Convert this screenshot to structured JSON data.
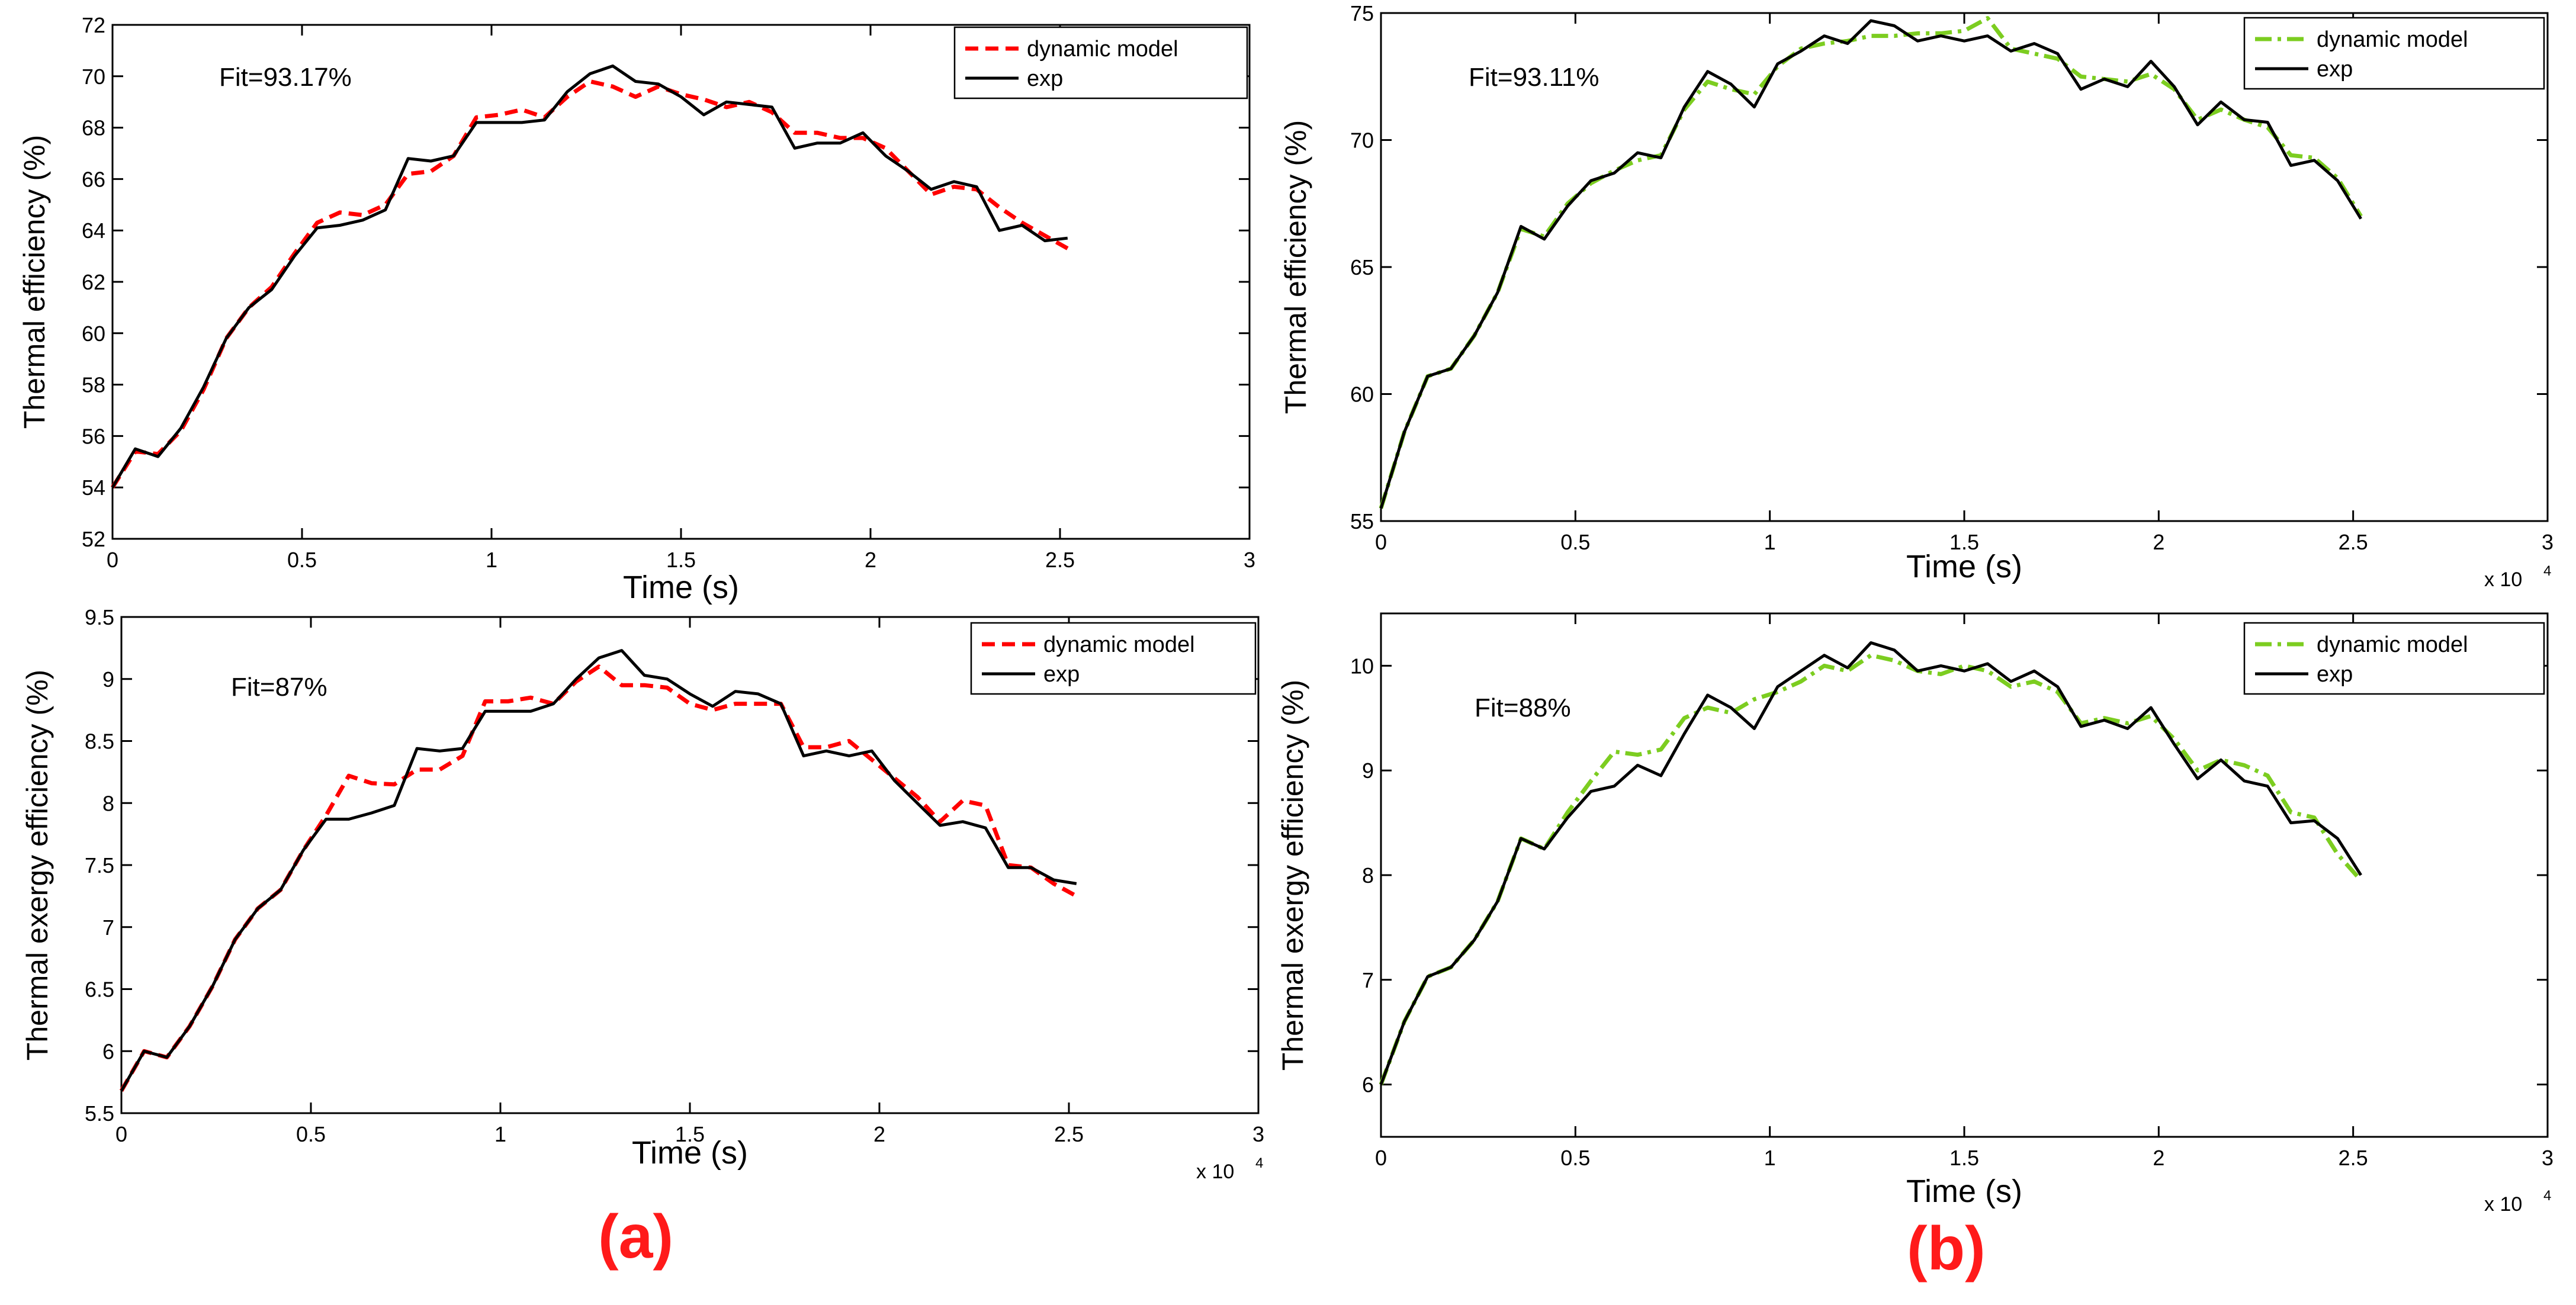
{
  "panel_labels": [
    "(a)",
    "(b)"
  ],
  "chart_data": [
    {
      "id": "a_top",
      "type": "line",
      "title": "",
      "xlabel": "Time (s)",
      "ylabel": "Thermal efficiency (%)",
      "x_multiplier_label": "x 10",
      "x_multiplier_exp": "4",
      "xlim": [
        0,
        3
      ],
      "ylim": [
        52,
        72
      ],
      "xticks": [
        "0",
        "0.5",
        "1",
        "1.5",
        "2",
        "2.5",
        "3"
      ],
      "yticks": [
        "52",
        "54",
        "56",
        "58",
        "60",
        "62",
        "64",
        "66",
        "68",
        "70",
        "72"
      ],
      "annotation": "Fit=93.17%",
      "legend_position": "top-right",
      "series": [
        {
          "name": "dynamic model",
          "color": "#ff0000",
          "dash": "dash",
          "x": [
            0,
            0.06,
            0.12,
            0.18,
            0.24,
            0.3,
            0.36,
            0.42,
            0.48,
            0.54,
            0.6,
            0.66,
            0.72,
            0.78,
            0.84,
            0.9,
            0.96,
            1.02,
            1.08,
            1.14,
            1.2,
            1.26,
            1.32,
            1.38,
            1.44,
            1.5,
            1.56,
            1.62,
            1.68,
            1.74,
            1.8,
            1.86,
            1.92,
            1.98,
            2.04,
            2.1,
            2.16,
            2.22,
            2.28,
            2.34,
            2.4,
            2.46,
            2.52
          ],
          "y": [
            54.0,
            55.4,
            55.3,
            56.2,
            57.8,
            59.8,
            61.0,
            61.8,
            63.1,
            64.3,
            64.7,
            64.6,
            65.0,
            66.2,
            66.3,
            66.9,
            68.4,
            68.5,
            68.7,
            68.4,
            69.2,
            69.8,
            69.6,
            69.2,
            69.6,
            69.3,
            69.1,
            68.8,
            69.0,
            68.6,
            67.8,
            67.8,
            67.6,
            67.6,
            67.2,
            66.3,
            65.4,
            65.7,
            65.6,
            64.9,
            64.3,
            63.8,
            63.3
          ]
        },
        {
          "name": "exp",
          "color": "#000000",
          "dash": "solid",
          "x": [
            0,
            0.06,
            0.12,
            0.18,
            0.24,
            0.3,
            0.36,
            0.42,
            0.48,
            0.54,
            0.6,
            0.66,
            0.72,
            0.78,
            0.84,
            0.9,
            0.96,
            1.02,
            1.08,
            1.14,
            1.2,
            1.26,
            1.32,
            1.38,
            1.44,
            1.5,
            1.56,
            1.62,
            1.68,
            1.74,
            1.8,
            1.86,
            1.92,
            1.98,
            2.04,
            2.1,
            2.16,
            2.22,
            2.28,
            2.34,
            2.4,
            2.46,
            2.52
          ],
          "y": [
            54.0,
            55.5,
            55.2,
            56.3,
            57.9,
            59.8,
            61.0,
            61.7,
            63.0,
            64.1,
            64.2,
            64.4,
            64.8,
            66.8,
            66.7,
            66.9,
            68.2,
            68.2,
            68.2,
            68.3,
            69.4,
            70.1,
            70.4,
            69.8,
            69.7,
            69.2,
            68.5,
            69.0,
            68.9,
            68.8,
            67.2,
            67.4,
            67.4,
            67.8,
            66.9,
            66.3,
            65.6,
            65.9,
            65.7,
            64.0,
            64.2,
            63.6,
            63.7
          ]
        }
      ]
    },
    {
      "id": "a_bottom",
      "type": "line",
      "title": "",
      "xlabel": "Time (s)",
      "ylabel": "Thermal exergy efficiency (%)",
      "x_multiplier_label": "x 10",
      "x_multiplier_exp": "4",
      "xlim": [
        0,
        3
      ],
      "ylim": [
        5.5,
        9.5
      ],
      "xticks": [
        "0",
        "0.5",
        "1",
        "1.5",
        "2",
        "2.5",
        "3"
      ],
      "yticks": [
        "5.5",
        "6",
        "6.5",
        "7",
        "7.5",
        "8",
        "8.5",
        "9",
        "9.5"
      ],
      "annotation": "Fit=87%",
      "legend_position": "top-right",
      "series": [
        {
          "name": "dynamic model",
          "color": "#ff0000",
          "dash": "dash",
          "x": [
            0,
            0.06,
            0.12,
            0.18,
            0.24,
            0.3,
            0.36,
            0.42,
            0.48,
            0.54,
            0.6,
            0.66,
            0.72,
            0.78,
            0.84,
            0.9,
            0.96,
            1.02,
            1.08,
            1.14,
            1.2,
            1.26,
            1.32,
            1.38,
            1.44,
            1.5,
            1.56,
            1.62,
            1.68,
            1.74,
            1.8,
            1.86,
            1.92,
            1.98,
            2.04,
            2.1,
            2.16,
            2.22,
            2.28,
            2.34,
            2.4,
            2.46,
            2.52
          ],
          "y": [
            5.68,
            6.0,
            5.95,
            6.2,
            6.52,
            6.9,
            7.15,
            7.3,
            7.62,
            7.9,
            8.22,
            8.16,
            8.15,
            8.27,
            8.27,
            8.38,
            8.82,
            8.82,
            8.85,
            8.8,
            8.98,
            9.1,
            8.95,
            8.95,
            8.93,
            8.8,
            8.75,
            8.8,
            8.8,
            8.8,
            8.45,
            8.45,
            8.5,
            8.35,
            8.2,
            8.05,
            7.85,
            8.02,
            7.98,
            7.5,
            7.48,
            7.35,
            7.25
          ]
        },
        {
          "name": "exp",
          "color": "#000000",
          "dash": "solid",
          "x": [
            0,
            0.06,
            0.12,
            0.18,
            0.24,
            0.3,
            0.36,
            0.42,
            0.48,
            0.54,
            0.6,
            0.66,
            0.72,
            0.78,
            0.84,
            0.9,
            0.96,
            1.02,
            1.08,
            1.14,
            1.2,
            1.26,
            1.32,
            1.38,
            1.44,
            1.5,
            1.56,
            1.62,
            1.68,
            1.74,
            1.8,
            1.86,
            1.92,
            1.98,
            2.04,
            2.1,
            2.16,
            2.22,
            2.28,
            2.34,
            2.4,
            2.46,
            2.52
          ],
          "y": [
            5.68,
            6.0,
            5.95,
            6.2,
            6.52,
            6.9,
            7.15,
            7.3,
            7.62,
            7.87,
            7.87,
            7.92,
            7.98,
            8.44,
            8.42,
            8.44,
            8.74,
            8.74,
            8.74,
            8.8,
            9.0,
            9.17,
            9.23,
            9.03,
            9.0,
            8.88,
            8.78,
            8.9,
            8.88,
            8.8,
            8.38,
            8.42,
            8.38,
            8.42,
            8.18,
            8.0,
            7.82,
            7.85,
            7.8,
            7.48,
            7.48,
            7.38,
            7.35
          ]
        }
      ]
    },
    {
      "id": "b_top",
      "type": "line",
      "title": "",
      "xlabel": "Time (s)",
      "ylabel": "Thermal efficiency (%)",
      "x_multiplier_label": "x 10",
      "x_multiplier_exp": "4",
      "xlim": [
        0,
        3
      ],
      "ylim": [
        55,
        75
      ],
      "xticks": [
        "0",
        "0.5",
        "1",
        "1.5",
        "2",
        "2.5",
        "3"
      ],
      "yticks": [
        "55",
        "60",
        "65",
        "70",
        "75"
      ],
      "annotation": "Fit=93.11%",
      "legend_position": "top-right",
      "series": [
        {
          "name": "dynamic model",
          "color": "#7ccd20",
          "dash": "dashdot",
          "x": [
            0,
            0.06,
            0.12,
            0.18,
            0.24,
            0.3,
            0.36,
            0.42,
            0.48,
            0.54,
            0.6,
            0.66,
            0.72,
            0.78,
            0.84,
            0.9,
            0.96,
            1.02,
            1.08,
            1.14,
            1.2,
            1.26,
            1.32,
            1.38,
            1.44,
            1.5,
            1.56,
            1.62,
            1.68,
            1.74,
            1.8,
            1.86,
            1.92,
            1.98,
            2.04,
            2.1,
            2.16,
            2.22,
            2.28,
            2.34,
            2.4,
            2.46,
            2.52
          ],
          "y": [
            55.5,
            58.5,
            60.7,
            61.0,
            62.3,
            64.0,
            66.5,
            66.2,
            67.5,
            68.3,
            68.8,
            69.2,
            69.4,
            71.2,
            72.3,
            72.0,
            71.8,
            72.9,
            73.6,
            73.8,
            73.9,
            74.1,
            74.1,
            74.2,
            74.2,
            74.3,
            74.8,
            73.6,
            73.4,
            73.2,
            72.5,
            72.4,
            72.3,
            72.6,
            72.0,
            70.8,
            71.2,
            70.8,
            70.5,
            69.4,
            69.3,
            68.5,
            67.0
          ]
        },
        {
          "name": "exp",
          "color": "#000000",
          "dash": "solid",
          "x": [
            0,
            0.06,
            0.12,
            0.18,
            0.24,
            0.3,
            0.36,
            0.42,
            0.48,
            0.54,
            0.6,
            0.66,
            0.72,
            0.78,
            0.84,
            0.9,
            0.96,
            1.02,
            1.08,
            1.14,
            1.2,
            1.26,
            1.32,
            1.38,
            1.44,
            1.5,
            1.56,
            1.62,
            1.68,
            1.74,
            1.8,
            1.86,
            1.92,
            1.98,
            2.04,
            2.1,
            2.16,
            2.22,
            2.28,
            2.34,
            2.4,
            2.46,
            2.52
          ],
          "y": [
            55.5,
            58.5,
            60.7,
            61.0,
            62.3,
            64.0,
            66.6,
            66.1,
            67.4,
            68.4,
            68.7,
            69.5,
            69.3,
            71.3,
            72.7,
            72.2,
            71.3,
            73.0,
            73.5,
            74.1,
            73.8,
            74.7,
            74.5,
            73.9,
            74.1,
            73.9,
            74.1,
            73.5,
            73.8,
            73.4,
            72.0,
            72.4,
            72.1,
            73.1,
            72.1,
            70.6,
            71.5,
            70.8,
            70.7,
            69.0,
            69.2,
            68.4,
            66.9
          ]
        }
      ]
    },
    {
      "id": "b_bottom",
      "type": "line",
      "title": "",
      "xlabel": "Time (s)",
      "ylabel": "Thermal exergy efficiency (%)",
      "x_multiplier_label": "x 10",
      "x_multiplier_exp": "4",
      "xlim": [
        0,
        3
      ],
      "ylim": [
        5.5,
        10.5
      ],
      "xticks": [
        "0",
        "0.5",
        "1",
        "1.5",
        "2",
        "2.5",
        "3"
      ],
      "yticks": [
        "6",
        "7",
        "8",
        "9",
        "10"
      ],
      "annotation": "Fit=88%",
      "legend_position": "top-right",
      "series": [
        {
          "name": "dynamic model",
          "color": "#7ccd20",
          "dash": "dashdot",
          "x": [
            0,
            0.06,
            0.12,
            0.18,
            0.24,
            0.3,
            0.36,
            0.42,
            0.48,
            0.54,
            0.6,
            0.66,
            0.72,
            0.78,
            0.84,
            0.9,
            0.96,
            1.02,
            1.08,
            1.14,
            1.2,
            1.26,
            1.32,
            1.38,
            1.44,
            1.5,
            1.56,
            1.62,
            1.68,
            1.74,
            1.8,
            1.86,
            1.92,
            1.98,
            2.04,
            2.1,
            2.16,
            2.22,
            2.28,
            2.34,
            2.4,
            2.46,
            2.52
          ],
          "y": [
            6.0,
            6.6,
            7.03,
            7.12,
            7.38,
            7.75,
            8.35,
            8.25,
            8.6,
            8.9,
            9.18,
            9.15,
            9.2,
            9.5,
            9.6,
            9.55,
            9.68,
            9.75,
            9.85,
            10.0,
            9.95,
            10.1,
            10.05,
            9.95,
            9.92,
            10.0,
            9.95,
            9.8,
            9.85,
            9.75,
            9.45,
            9.5,
            9.45,
            9.52,
            9.3,
            9.0,
            9.1,
            9.05,
            8.95,
            8.6,
            8.55,
            8.2,
            7.95
          ]
        },
        {
          "name": "exp",
          "color": "#000000",
          "dash": "solid",
          "x": [
            0,
            0.06,
            0.12,
            0.18,
            0.24,
            0.3,
            0.36,
            0.42,
            0.48,
            0.54,
            0.6,
            0.66,
            0.72,
            0.78,
            0.84,
            0.9,
            0.96,
            1.02,
            1.08,
            1.14,
            1.2,
            1.26,
            1.32,
            1.38,
            1.44,
            1.5,
            1.56,
            1.62,
            1.68,
            1.74,
            1.8,
            1.86,
            1.92,
            1.98,
            2.04,
            2.1,
            2.16,
            2.22,
            2.28,
            2.34,
            2.4,
            2.46,
            2.52
          ],
          "y": [
            6.0,
            6.6,
            7.03,
            7.12,
            7.38,
            7.75,
            8.35,
            8.25,
            8.55,
            8.8,
            8.85,
            9.05,
            8.95,
            9.35,
            9.72,
            9.6,
            9.4,
            9.8,
            9.95,
            10.1,
            9.98,
            10.22,
            10.15,
            9.95,
            10.0,
            9.95,
            10.02,
            9.85,
            9.95,
            9.8,
            9.42,
            9.48,
            9.4,
            9.6,
            9.25,
            8.92,
            9.1,
            8.9,
            8.85,
            8.5,
            8.52,
            8.35,
            8.0
          ]
        }
      ]
    }
  ]
}
